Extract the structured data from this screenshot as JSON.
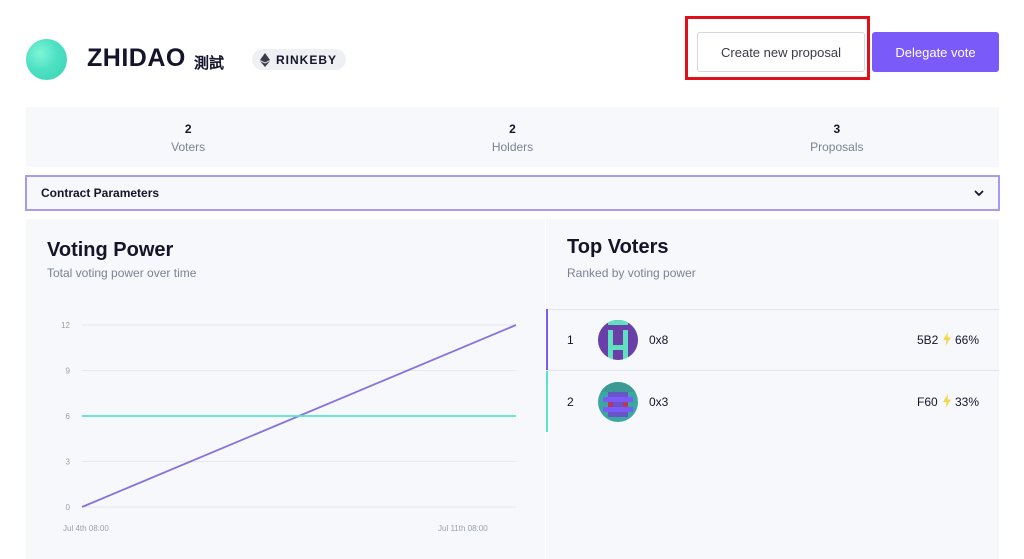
{
  "header": {
    "dao_name": "ZHIDAO",
    "dao_subtitle": "測試",
    "network": "RINKEBY",
    "create_proposal_label": "Create new proposal",
    "delegate_label": "Delegate vote"
  },
  "stats": [
    {
      "value": "2",
      "label": "Voters"
    },
    {
      "value": "2",
      "label": "Holders"
    },
    {
      "value": "3",
      "label": "Proposals"
    }
  ],
  "contract_parameters": {
    "label": "Contract Parameters",
    "icon": "chevron-down-icon"
  },
  "voting_power": {
    "title": "Voting Power",
    "subtitle": "Total voting power over time"
  },
  "chart_data": {
    "type": "line",
    "x": [
      "Jul 4th 08:00",
      "Jul 11th 08:00"
    ],
    "x_tick_labels": [
      "Jul 4th 08:00",
      "Jul 11th 08:00"
    ],
    "ylim": [
      0,
      12
    ],
    "y_ticks": [
      "0",
      "3",
      "6",
      "9",
      "12"
    ],
    "grid": true,
    "series": [
      {
        "color": "#8a6fde",
        "values": [
          0,
          12
        ]
      },
      {
        "color": "#56e5c8",
        "values": [
          6,
          6
        ]
      }
    ]
  },
  "top_voters": {
    "title": "Top Voters",
    "subtitle": "Ranked by voting power",
    "rows": [
      {
        "rank": "1",
        "address_start": "0x8",
        "address_end": "5B2",
        "percent": "66%",
        "accent": "#7a5af8"
      },
      {
        "rank": "2",
        "address_start": "0x3",
        "address_end": "F60",
        "percent": "33%",
        "accent": "#56e5c8"
      }
    ]
  },
  "colors": {
    "primary": "#7a5af8",
    "teal": "#56e5c8",
    "highlight": "#e0101a"
  }
}
